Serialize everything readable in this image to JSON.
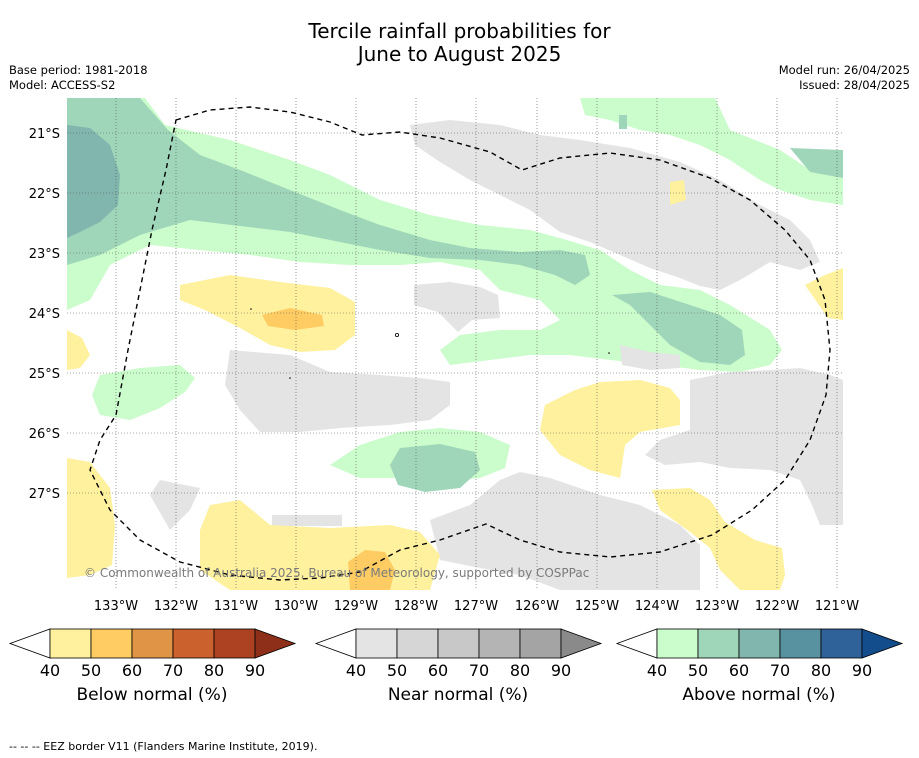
{
  "title_line1": "Tercile rainfall probabilities for",
  "title_line2": "June to August 2025",
  "base_period": "Base period: 1981-2018",
  "model": "Model: ACCESS-S2",
  "model_run": "Model run: 26/04/2025",
  "issued": "Issued: 28/04/2025",
  "copyright": "© Commonwealth of Australia 2025, Bureau of Meteorology, supported by COSPPac",
  "lat_labels": [
    "21°S",
    "22°S",
    "23°S",
    "24°S",
    "25°S",
    "26°S",
    "27°S"
  ],
  "lon_labels": [
    "133°W",
    "132°W",
    "131°W",
    "130°W",
    "129°W",
    "128°W",
    "127°W",
    "126°W",
    "125°W",
    "124°W",
    "123°W",
    "122°W",
    "121°W"
  ],
  "colorbars": [
    {
      "label": "Below normal (%)",
      "ticks": [
        "40",
        "50",
        "60",
        "70",
        "80",
        "90"
      ],
      "colors": [
        "#fff19d",
        "#fecc63",
        "#e09445",
        "#cb622d",
        "#ad4223",
        "#8e2f1a"
      ]
    },
    {
      "label": "Near normal (%)",
      "ticks": [
        "40",
        "50",
        "60",
        "70",
        "80",
        "90"
      ],
      "colors": [
        "#e4e4e4",
        "#d6d6d6",
        "#c8c8c8",
        "#b4b4b4",
        "#a4a4a4",
        "#8a8a8a"
      ]
    },
    {
      "label": "Above normal (%)",
      "ticks": [
        "40",
        "50",
        "60",
        "70",
        "80",
        "90"
      ],
      "colors": [
        "#cbfccb",
        "#9fd6b9",
        "#80b6ad",
        "#5891a0",
        "#2e6299",
        "#144d8c"
      ]
    }
  ],
  "footer": "--  --  -- EEZ border V11 (Flanders Marine Institute, 2019)."
}
